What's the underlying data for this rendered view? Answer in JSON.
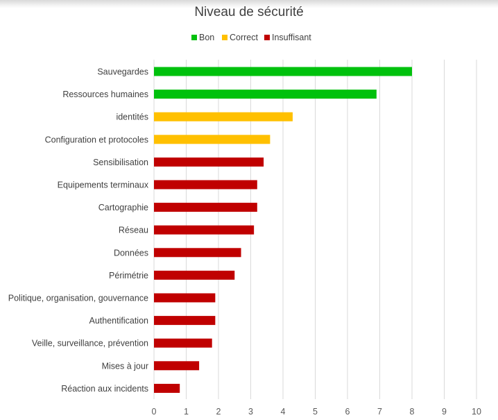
{
  "chart_data": {
    "type": "bar",
    "orientation": "horizontal",
    "title": "Niveau de sécurité",
    "legend": {
      "placement": "top",
      "items": [
        {
          "key": "bon",
          "label": "Bon",
          "color": "#00c10d"
        },
        {
          "key": "correct",
          "label": "Correct",
          "color": "#ffc000"
        },
        {
          "key": "insuffisant",
          "label": "Insuffisant",
          "color": "#c00000"
        }
      ]
    },
    "categories": [
      "Sauvegardes",
      "Ressources humaines",
      "identités",
      "Configuration et protocoles",
      "Sensibilisation",
      "Equipements terminaux",
      "Cartographie",
      "Réseau",
      "Données",
      "Périmétrie",
      "Politique, organisation, gouvernance",
      "Authentification",
      "Veille, surveillance, prévention",
      "Mises à jour",
      "Réaction aux incidents"
    ],
    "values": [
      8.0,
      6.9,
      4.3,
      3.6,
      3.4,
      3.2,
      3.2,
      3.1,
      2.7,
      2.5,
      1.9,
      1.9,
      1.8,
      1.4,
      0.8
    ],
    "levels": [
      "bon",
      "bon",
      "correct",
      "correct",
      "insuffisant",
      "insuffisant",
      "insuffisant",
      "insuffisant",
      "insuffisant",
      "insuffisant",
      "insuffisant",
      "insuffisant",
      "insuffisant",
      "insuffisant",
      "insuffisant"
    ],
    "xlim": [
      0,
      10
    ],
    "xticks": [
      "0",
      "1",
      "2",
      "3",
      "4",
      "5",
      "6",
      "7",
      "8",
      "9",
      "10"
    ],
    "grid": true
  }
}
